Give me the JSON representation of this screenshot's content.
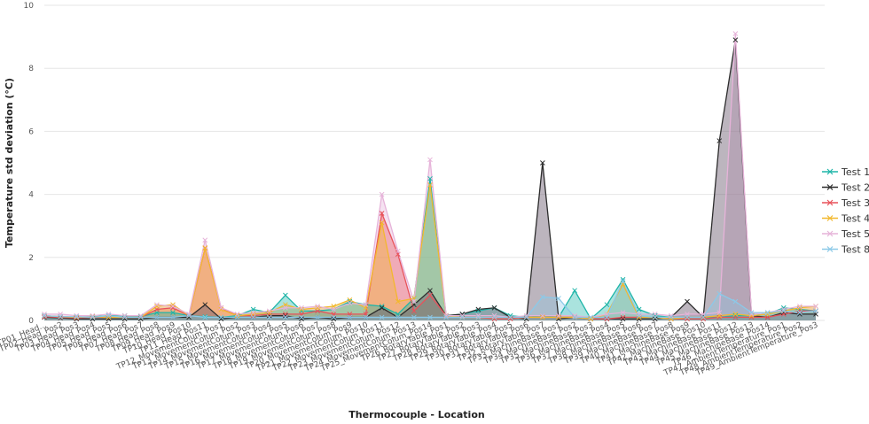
{
  "chart_data": {
    "type": "area",
    "title": "",
    "xlabel": "Thermocouple - Location",
    "ylabel": "Temperature std deviation (°C)",
    "ylim": [
      0,
      10
    ],
    "yticks": [
      0,
      2,
      4,
      6,
      8,
      10
    ],
    "grid": true,
    "legend": "right",
    "categories": [
      "TP01_Head...",
      "TP02_Head_Pos2",
      "TP03_Head_Pos3",
      "TP04_Head_Pos4",
      "TP05_Head_Pos5",
      "TP06_Head_Pos6",
      "TP07_Head_Pos7",
      "TP08_Head_Pos8",
      "TP09_Head_Pos9",
      "TP10_Head_Pos10",
      "TP11_Head_Pos11",
      "TP12_MovementColum_Pos1",
      "TP13_MovementColum_Pos2",
      "TP14_MovementColum_Pos3",
      "TP15_MovementColum_Pos4",
      "TP16_MovementColum_Pos5",
      "TP17_MovementColum_Pos6",
      "TP18_MovementColum_Pos7",
      "TP19_MovementColum_Pos8",
      "TP20_MovementColum_Pos9",
      "TP21_MovementColum_Pos10",
      "TP22_MovementColum_Pos11",
      "TP23_MovementColum_Pos12",
      "TP24_MovementColum_Pos13",
      "TP25_MovementColum_Pos14",
      "TP26_RotaryTable_Pos1",
      "TP27_RotaryTable_Pos2",
      "TP28_RotaryTable_Pos3",
      "TP29_RotaryTable_Pos4",
      "TP30_RotaryTable_Pos5",
      "TP31_RotaryTable_Pos6",
      "TP32_RotaryTable_Pos7",
      "TP33_MachineBase_Pos1",
      "TP34_MachineBase_Pos2",
      "TP35_MachineBase_Pos3",
      "TP36_MachineBase_Pos4",
      "TP37_MachineBase_Pos5",
      "TP38_MachineBase_Pos6",
      "TP39_MachineBase_Pos7",
      "TP40_MachineBase_Pos8",
      "TP41_MachineBase_Pos9",
      "TP42_MachineBase_Pos10",
      "TP43_MachineBase_Pos11",
      "TP44_MachineBase_Pos12",
      "TP45_MachineBase_Pos13",
      "TP46_MachineBase_Pos14",
      "TP47_AmbientTemperature_Pos1",
      "TP48_AmbientTemperature_Pos2",
      "TP49_AmbientTemperature_Pos3"
    ],
    "series": [
      {
        "name": "Test 1",
        "color": "#1fb5a8",
        "values": [
          0.15,
          0.12,
          0.1,
          0.12,
          0.15,
          0.15,
          0.12,
          0.25,
          0.25,
          0.15,
          0.12,
          0.1,
          0.15,
          0.35,
          0.25,
          0.8,
          0.3,
          0.3,
          0.35,
          0.6,
          0.5,
          0.45,
          0.2,
          0.7,
          4.5,
          0.15,
          0.2,
          0.3,
          0.4,
          0.15,
          0.1,
          0.15,
          0.1,
          0.95,
          0.05,
          0.5,
          1.3,
          0.35,
          0.15,
          0.1,
          0.1,
          0.1,
          0.1,
          0.15,
          0.15,
          0.2,
          0.4,
          0.35,
          0.3
        ]
      },
      {
        "name": "Test 2",
        "color": "#2d2d2d",
        "values": [
          0.1,
          0.08,
          0.05,
          0.05,
          0.05,
          0.05,
          0.05,
          0.1,
          0.1,
          0.1,
          0.5,
          0.05,
          0.1,
          0.1,
          0.15,
          0.15,
          0.05,
          0.1,
          0.05,
          0.1,
          0.1,
          0.4,
          0.1,
          0.5,
          0.95,
          0.15,
          0.2,
          0.35,
          0.4,
          0.1,
          0.05,
          5.0,
          0.05,
          0.1,
          0.05,
          0.05,
          0.05,
          0.05,
          0.05,
          0.1,
          0.6,
          0.1,
          5.7,
          8.9,
          0.15,
          0.1,
          0.25,
          0.2,
          0.2
        ]
      },
      {
        "name": "Test 3",
        "color": "#e8525a",
        "values": [
          0.12,
          0.1,
          0.08,
          0.1,
          0.1,
          0.1,
          0.1,
          0.35,
          0.4,
          0.15,
          2.3,
          0.4,
          0.15,
          0.15,
          0.2,
          0.2,
          0.2,
          0.3,
          0.2,
          0.2,
          0.2,
          3.4,
          2.1,
          0.3,
          0.8,
          0.15,
          0.1,
          0.1,
          0.05,
          0.05,
          0.1,
          0.1,
          0.1,
          0.1,
          0.05,
          0.05,
          0.1,
          0.1,
          0.1,
          0.05,
          0.05,
          0.05,
          0.1,
          0.1,
          0.1,
          0.1,
          0.2,
          0.3,
          0.3
        ]
      },
      {
        "name": "Test 4",
        "color": "#f2b82e",
        "values": [
          0.15,
          0.12,
          0.1,
          0.12,
          0.1,
          0.1,
          0.1,
          0.45,
          0.5,
          0.15,
          2.3,
          0.35,
          0.15,
          0.2,
          0.25,
          0.5,
          0.35,
          0.4,
          0.45,
          0.65,
          0.4,
          3.1,
          0.6,
          0.7,
          4.3,
          0.15,
          0.1,
          0.1,
          0.1,
          0.1,
          0.1,
          0.1,
          0.1,
          0.1,
          0.05,
          0.2,
          1.15,
          0.1,
          0.1,
          0.05,
          0.1,
          0.1,
          0.15,
          0.2,
          0.15,
          0.2,
          0.3,
          0.4,
          0.45
        ]
      },
      {
        "name": "Test 5",
        "color": "#e6b3d9",
        "values": [
          0.2,
          0.2,
          0.15,
          0.15,
          0.2,
          0.15,
          0.15,
          0.5,
          0.45,
          0.2,
          2.55,
          0.4,
          0.2,
          0.25,
          0.3,
          0.4,
          0.4,
          0.45,
          0.35,
          0.55,
          0.5,
          4.0,
          2.2,
          0.6,
          5.1,
          0.15,
          0.15,
          0.15,
          0.15,
          0.1,
          0.15,
          0.15,
          0.15,
          0.15,
          0.1,
          0.2,
          0.25,
          0.2,
          0.2,
          0.15,
          0.2,
          0.2,
          0.25,
          9.1,
          0.2,
          0.25,
          0.35,
          0.45,
          0.45
        ]
      },
      {
        "name": "Test 8",
        "color": "#8cc9e8",
        "values": [
          0.15,
          0.12,
          0.12,
          0.1,
          0.15,
          0.1,
          0.1,
          0.1,
          0.1,
          0.15,
          0.1,
          0.1,
          0.1,
          0.1,
          0.1,
          0.1,
          0.1,
          0.1,
          0.1,
          0.1,
          0.1,
          0.1,
          0.1,
          0.1,
          0.1,
          0.1,
          0.1,
          0.1,
          0.1,
          0.1,
          0.1,
          0.75,
          0.7,
          0.1,
          0.1,
          0.1,
          1.25,
          0.15,
          0.1,
          0.1,
          0.1,
          0.1,
          0.85,
          0.6,
          0.25,
          0.25,
          0.3,
          0.25,
          0.3
        ]
      }
    ]
  }
}
